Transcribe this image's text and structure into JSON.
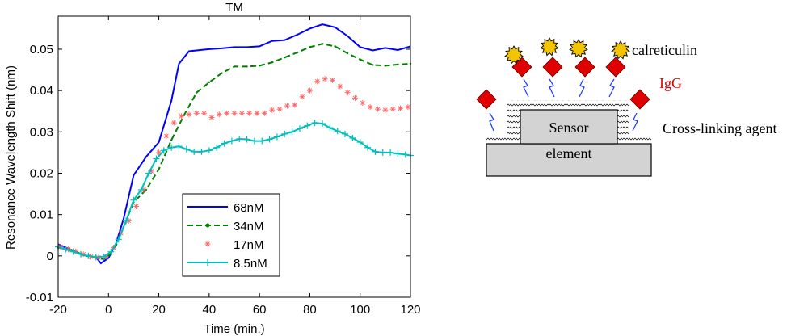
{
  "chart_data": {
    "type": "line",
    "title": "TM",
    "xlabel": "Time (min.)",
    "ylabel": "Resonance Wavelength Shift (nm)",
    "xlim": [
      -20,
      120
    ],
    "ylim": [
      -0.01,
      0.058
    ],
    "xticks": [
      -20,
      0,
      20,
      40,
      60,
      80,
      100,
      120
    ],
    "yticks": [
      -0.01,
      0,
      0.01,
      0.02,
      0.03,
      0.04,
      0.05
    ],
    "ytick_labels": [
      "-0.01",
      "0",
      "0.01",
      "0.02",
      "0.03",
      "0.04",
      "0.05"
    ],
    "legend": "center",
    "series": [
      {
        "name": "68nM",
        "color": "#0000ff",
        "style": "solid",
        "marker": "none",
        "x": [
          -20,
          -15,
          -10,
          -5,
          -3,
          0,
          3,
          6,
          10,
          15,
          20,
          25,
          28,
          32,
          40,
          45,
          50,
          55,
          60,
          65,
          70,
          75,
          80,
          85,
          90,
          95,
          100,
          105,
          110,
          115,
          120
        ],
        "y": [
          0.0028,
          0.0015,
          0.0002,
          -0.0003,
          -0.0018,
          -0.0005,
          0.003,
          0.009,
          0.0195,
          0.024,
          0.0275,
          0.0375,
          0.0465,
          0.0495,
          0.05,
          0.0502,
          0.0505,
          0.0505,
          0.0507,
          0.052,
          0.0522,
          0.0535,
          0.055,
          0.056,
          0.0553,
          0.0532,
          0.0505,
          0.0497,
          0.0503,
          0.0498,
          0.0507
        ]
      },
      {
        "name": "34nM",
        "color": "#007f00",
        "style": "dashed",
        "marker": "dot",
        "x": [
          -20,
          -15,
          -10,
          -5,
          -2,
          0,
          3,
          6,
          10,
          15,
          20,
          25,
          30,
          35,
          40,
          45,
          50,
          55,
          60,
          65,
          70,
          75,
          80,
          85,
          90,
          95,
          100,
          105,
          110,
          115,
          120
        ],
        "y": [
          0.002,
          0.0015,
          0.0002,
          -0.0005,
          -0.0008,
          0,
          0.0025,
          0.007,
          0.013,
          0.016,
          0.021,
          0.028,
          0.034,
          0.0395,
          0.042,
          0.0442,
          0.0458,
          0.0458,
          0.046,
          0.0468,
          0.048,
          0.0492,
          0.0505,
          0.0513,
          0.0507,
          0.049,
          0.0475,
          0.0462,
          0.046,
          0.0463,
          0.0465
        ]
      },
      {
        "name": "17nM",
        "color": "#ff6060",
        "style": "none",
        "marker": "star",
        "x": [
          -19,
          -16,
          -13,
          -10,
          -7,
          -4,
          -1,
          2,
          5,
          8,
          11,
          14,
          17,
          20,
          23,
          26,
          29,
          32,
          35,
          38,
          41,
          44,
          47,
          50,
          53,
          56,
          59,
          62,
          65,
          68,
          71,
          74,
          77,
          80,
          83,
          86,
          89,
          92,
          95,
          98,
          101,
          104,
          107,
          110,
          113,
          116,
          119
        ],
        "y": [
          0.0022,
          0.0016,
          0.0011,
          0.0004,
          -0.0002,
          -0.0004,
          -0.0002,
          0.002,
          0.0055,
          0.0085,
          0.012,
          0.016,
          0.0205,
          0.025,
          0.029,
          0.0322,
          0.0338,
          0.0342,
          0.0345,
          0.0345,
          0.0335,
          0.0342,
          0.0345,
          0.0345,
          0.0345,
          0.0345,
          0.0345,
          0.0345,
          0.0353,
          0.0355,
          0.0363,
          0.0365,
          0.0385,
          0.04,
          0.0422,
          0.0428,
          0.0425,
          0.041,
          0.0395,
          0.0382,
          0.037,
          0.036,
          0.0355,
          0.0353,
          0.0355,
          0.0357,
          0.036
        ]
      },
      {
        "name": "8.5nM",
        "color": "#00bfbf",
        "style": "solid",
        "marker": "plus",
        "x": [
          -20,
          -17,
          -14,
          -11,
          -8,
          -5,
          -2,
          1,
          4,
          7,
          10,
          13,
          16,
          19,
          22,
          25,
          28,
          31,
          34,
          37,
          40,
          43,
          46,
          49,
          52,
          55,
          58,
          61,
          64,
          67,
          70,
          73,
          76,
          79,
          82,
          85,
          88,
          91,
          94,
          97,
          100,
          103,
          106,
          109,
          112,
          115,
          118,
          120
        ],
        "y": [
          0.0022,
          0.0016,
          0.001,
          0.0004,
          0,
          -0.0003,
          -0.0002,
          0.001,
          0.004,
          0.0085,
          0.0135,
          0.016,
          0.02,
          0.0235,
          0.0255,
          0.0262,
          0.0265,
          0.0258,
          0.0252,
          0.0252,
          0.0255,
          0.0262,
          0.0272,
          0.0278,
          0.0283,
          0.0282,
          0.0278,
          0.0278,
          0.0282,
          0.0288,
          0.0295,
          0.03,
          0.0308,
          0.0315,
          0.0322,
          0.032,
          0.031,
          0.0302,
          0.0295,
          0.0285,
          0.0275,
          0.0262,
          0.0252,
          0.025,
          0.025,
          0.0247,
          0.0245,
          0.0243
        ]
      }
    ]
  },
  "diagram": {
    "labels": {
      "calreticulin": "calreticulin",
      "igg": "IgG",
      "crosslinker": "Cross-linking agent",
      "sensor_line1": "Sensor",
      "sensor_line2": "element"
    },
    "colors": {
      "igg": "#e00000",
      "calreticulin": "#f2c500",
      "linker": "#2040ff",
      "sensor_fill": "#d3d3d3"
    }
  }
}
